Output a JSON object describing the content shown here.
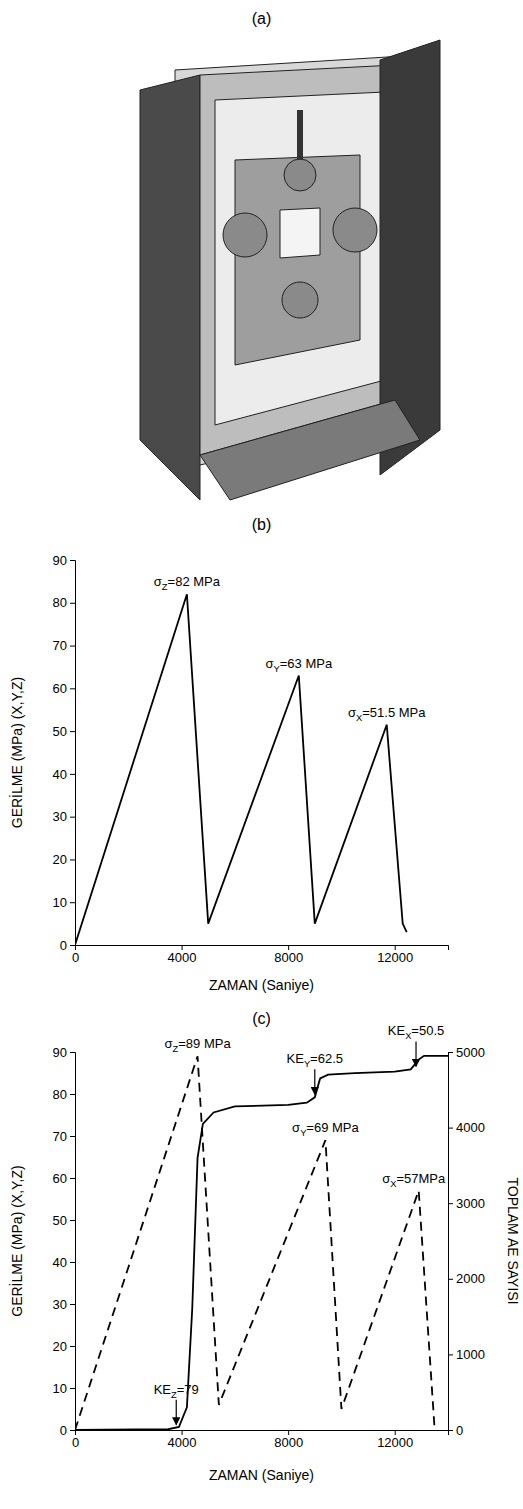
{
  "figure_a": {
    "title": "(a)"
  },
  "chart_data": [
    {
      "type": "line",
      "title": "(b)",
      "x_label": "ZAMAN (Saniye)",
      "y_label": "GERİLME (MPa) (X,Y,Z)",
      "xlim": [
        0,
        14000
      ],
      "xticks": [
        0,
        4000,
        8000,
        12000
      ],
      "ylim": [
        0,
        90
      ],
      "yticks": [
        0,
        10,
        20,
        30,
        40,
        50,
        60,
        70,
        80,
        90
      ],
      "grid": false,
      "series": [
        {
          "color": "#000000",
          "line_style": "solid",
          "x": [
            0,
            4200,
            5000,
            8400,
            9000,
            11700,
            12300,
            12450
          ],
          "values": [
            0,
            82,
            5,
            63,
            5,
            51.5,
            5,
            3
          ]
        }
      ],
      "annotations": [
        {
          "text": "σZ=82 MPa",
          "x": 4200,
          "y": 82
        },
        {
          "text": "σY=63 MPa",
          "x": 8400,
          "y": 63
        },
        {
          "text": "σX=51.5 MPa",
          "x": 11700,
          "y": 51.5
        }
      ]
    },
    {
      "type": "line",
      "title": "(c)",
      "x_label": "ZAMAN (Saniye)",
      "y_label": "GERİLME (MPa) (X,Y,Z)",
      "y2_label": "TOPLAM AE SAYISI",
      "xlim": [
        0,
        14000
      ],
      "xticks": [
        0,
        4000,
        8000,
        12000
      ],
      "ylim": [
        0,
        90
      ],
      "yticks": [
        0,
        10,
        20,
        30,
        40,
        50,
        60,
        70,
        80,
        90
      ],
      "y2lim": [
        0,
        5000
      ],
      "y2ticks": [
        0,
        1000,
        2000,
        3000,
        4000,
        5000
      ],
      "grid": false,
      "series": [
        {
          "color": "#000000",
          "line_style": "dashed",
          "x": [
            0,
            4600,
            5400,
            9400,
            10000,
            12900,
            13500
          ],
          "values": [
            0,
            89,
            6,
            69,
            5,
            57,
            0
          ]
        },
        {
          "color": "#000000",
          "line_style": "solid",
          "axis": "y2",
          "x": [
            0,
            3500,
            3900,
            4200,
            4400,
            4600,
            4800,
            5200,
            6000,
            8000,
            8700,
            9000,
            9200,
            9500,
            10500,
            12000,
            12600,
            12900,
            13100,
            14000
          ],
          "values": [
            0,
            10,
            40,
            300,
            1600,
            3600,
            4050,
            4200,
            4280,
            4300,
            4330,
            4400,
            4650,
            4700,
            4720,
            4740,
            4770,
            4900,
            4950,
            4950
          ]
        }
      ],
      "annotations": [
        {
          "text": "σZ=89 MPa",
          "x": 4600,
          "y": 89
        },
        {
          "text": "σY=69 MPa",
          "x": 9400,
          "y": 69
        },
        {
          "text": "σX=57MPa",
          "x": 12900,
          "y": 57
        },
        {
          "text": "KEZ=79",
          "x": 3800,
          "y": 30,
          "axis": "y2",
          "arrow": true
        },
        {
          "text": "KEY=62.5",
          "x": 9000,
          "y": 4400,
          "axis": "y2",
          "arrow": true
        },
        {
          "text": "KEX=50.5",
          "x": 12800,
          "y": 4770,
          "axis": "y2",
          "arrow": true
        }
      ]
    }
  ]
}
